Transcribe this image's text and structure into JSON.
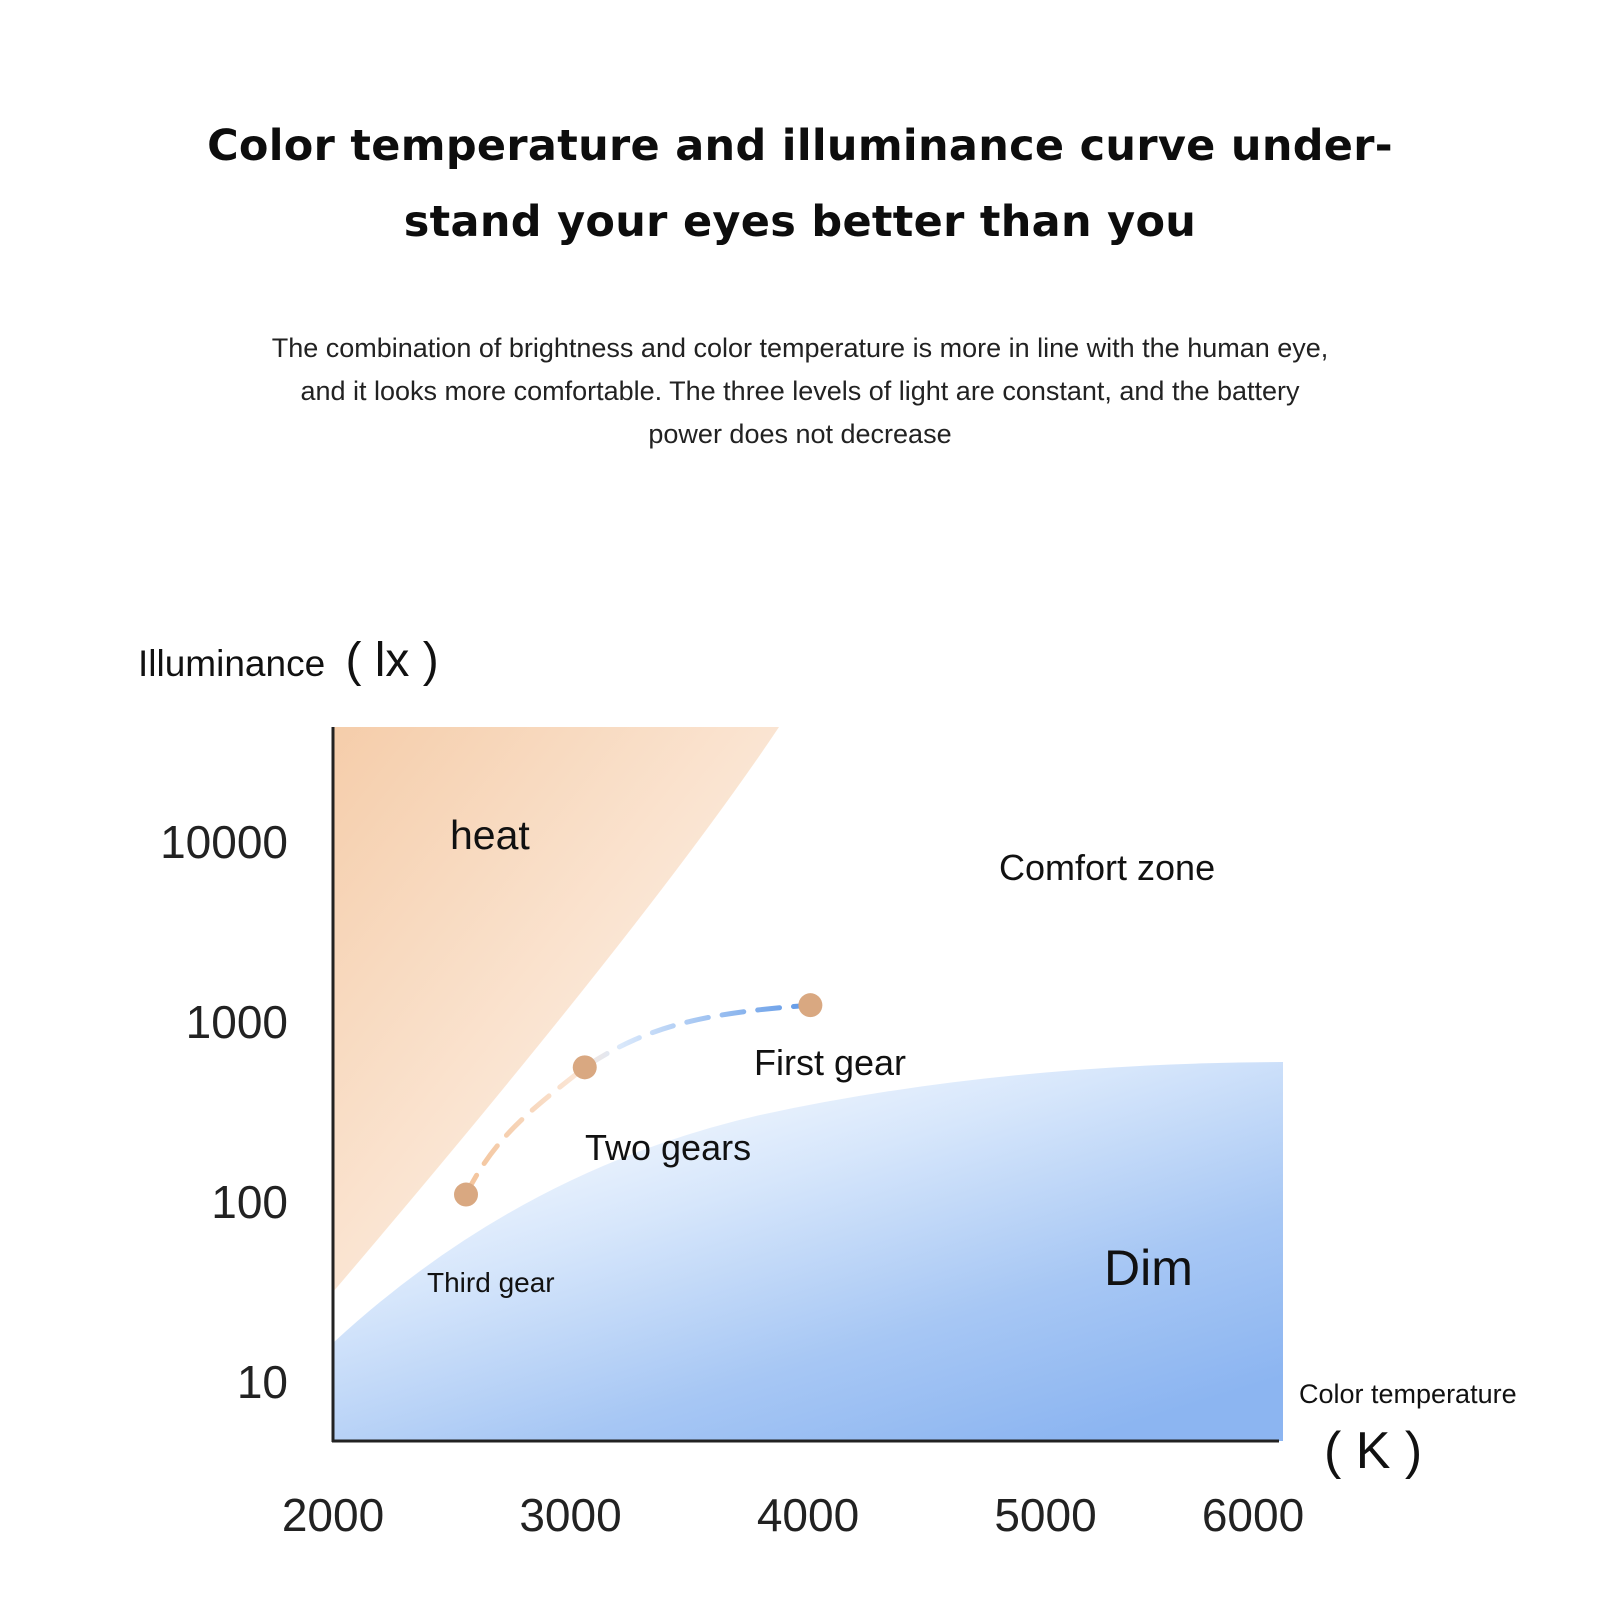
{
  "header": {
    "title_line1": "Color temperature and illuminance curve under-",
    "title_line2": "stand your eyes better than you",
    "description_line1": "The combination of brightness and color temperature is more in line with the human eye,",
    "description_line2": "and it looks more comfortable. The three levels of light are constant, and the battery",
    "description_line3": "power does not decrease"
  },
  "chart_data": {
    "type": "scatter",
    "ylabel": "Illuminance",
    "ylabel_unit": "( lx )",
    "xlabel": "Color temperature",
    "xlabel_unit": "( K )",
    "x_ticks": [
      "2000",
      "3000",
      "4000",
      "5000",
      "6000"
    ],
    "y_ticks": [
      "10",
      "100",
      "1000",
      "10000"
    ],
    "xlim": [
      2000,
      6000
    ],
    "ylim": [
      4,
      40000
    ],
    "y_scale": "log",
    "regions": [
      {
        "label": "heat",
        "color": "#f4cfb0"
      },
      {
        "label": "Comfort zone",
        "color": "#ffffff"
      },
      {
        "label": "Dim",
        "color": "#8fb7f1"
      }
    ],
    "points": [
      {
        "label": "Third gear",
        "x": 2560,
        "y": 110
      },
      {
        "label": "Two gears",
        "x": 3060,
        "y": 560
      },
      {
        "label": "First gear",
        "x": 4010,
        "y": 1240
      }
    ],
    "colors": {
      "point": "#d9a881",
      "curve_warm": "#f3c9a0",
      "curve_cool": "#6aa1e8",
      "axis": "#222222"
    }
  }
}
